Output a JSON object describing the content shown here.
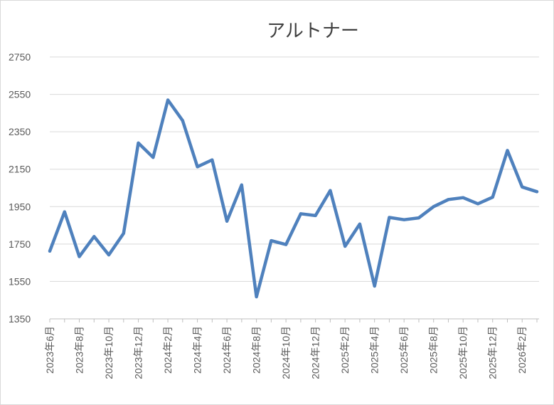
{
  "chart_data": {
    "type": "line",
    "title": "アルトナー",
    "xlabel": "",
    "ylabel": "",
    "ylim": [
      1350,
      2750
    ],
    "yticks": [
      1350,
      1550,
      1750,
      1950,
      2150,
      2350,
      2550,
      2750
    ],
    "x": [
      "2023年6月",
      "2023年7月",
      "2023年8月",
      "2023年9月",
      "2023年10月",
      "2023年11月",
      "2023年12月",
      "2024年1月",
      "2024年2月",
      "2024年3月",
      "2024年4月",
      "2024年5月",
      "2024年6月",
      "2024年7月",
      "2024年8月",
      "2024年9月",
      "2024年10月",
      "2024年11月",
      "2024年12月",
      "2025年1月",
      "2025年2月",
      "2025年3月",
      "2025年4月",
      "2025年5月",
      "2025年6月",
      "2025年7月",
      "2025年8月",
      "2025年9月",
      "2025年10月",
      "2025年11月",
      "2025年12月",
      "2026年1月",
      "2026年2月",
      "2026年3月"
    ],
    "xtick_labels": [
      "2023年6月",
      "2023年8月",
      "2023年10月",
      "2023年12月",
      "2024年2月",
      "2024年4月",
      "2024年6月",
      "2024年8月",
      "2024年10月",
      "2024年12月",
      "2025年2月",
      "2025年4月",
      "2025年6月",
      "2025年8月",
      "2025年10月",
      "2025年12月",
      "2026年2月"
    ],
    "series": [
      {
        "values": [
          1712,
          1922,
          1683,
          1790,
          1692,
          1807,
          2290,
          2213,
          2520,
          2410,
          2163,
          2200,
          1872,
          2066,
          1468,
          1768,
          1747,
          1912,
          1902,
          2036,
          1738,
          1857,
          1525,
          1892,
          1880,
          1890,
          1950,
          1988,
          1998,
          1965,
          2000,
          2250,
          2055,
          2030
        ]
      }
    ],
    "grid": true,
    "legend": "none",
    "line_color": "#4f81bd"
  }
}
